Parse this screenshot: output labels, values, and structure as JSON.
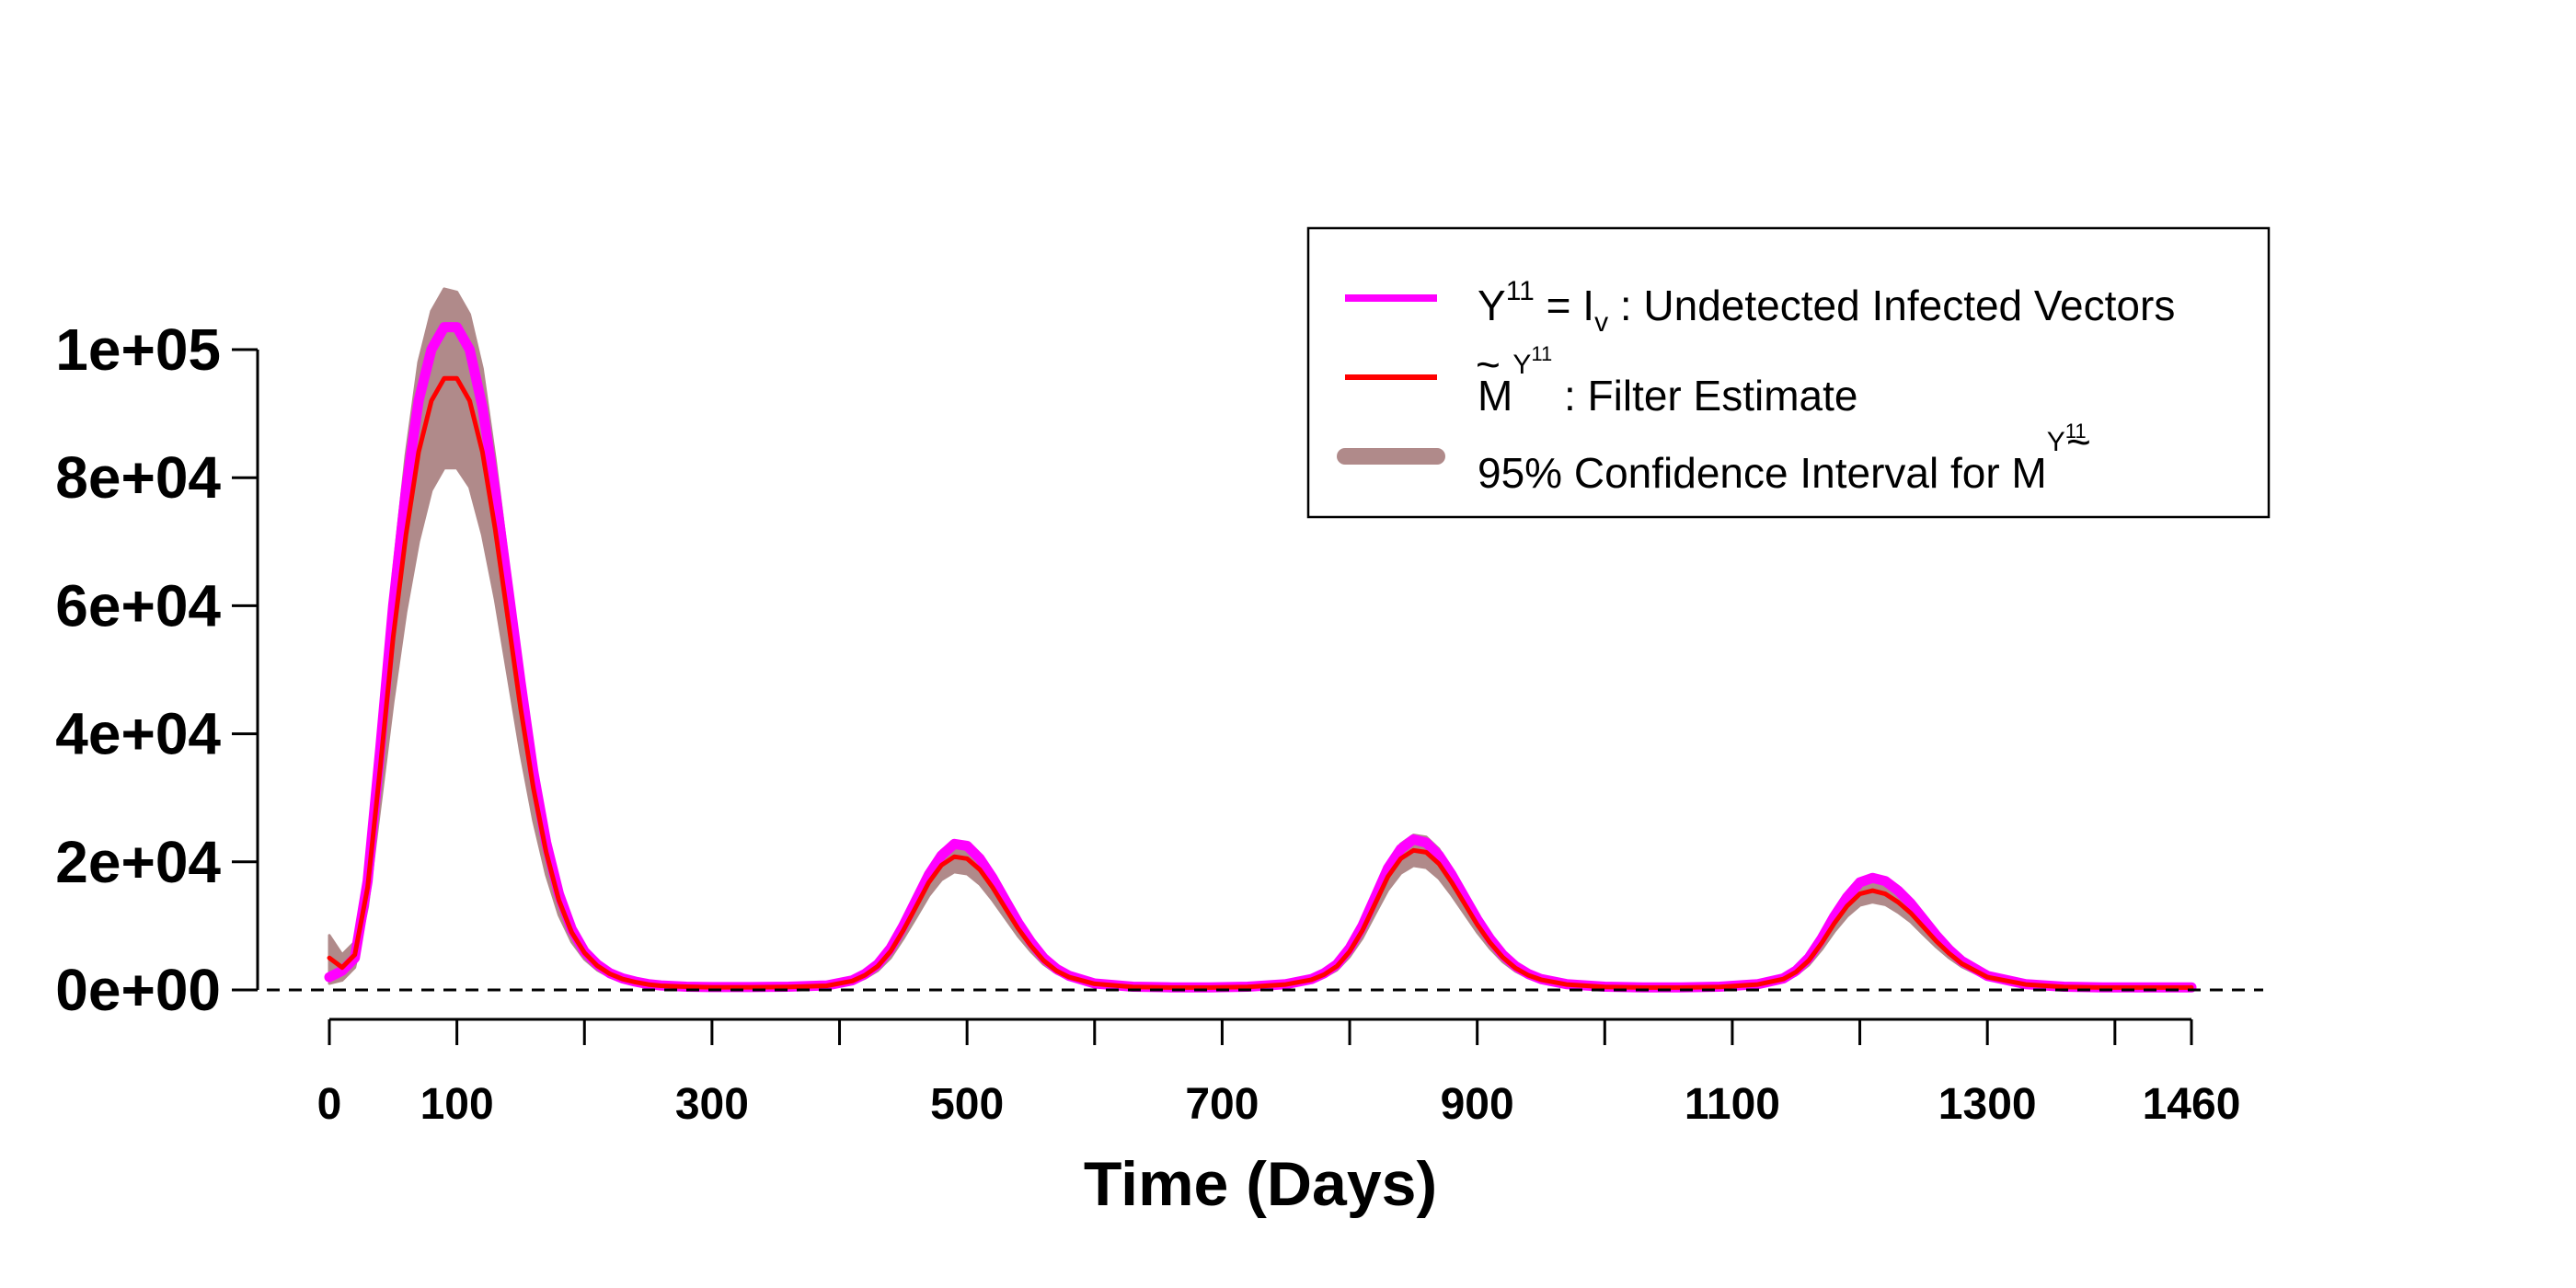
{
  "chart_data": {
    "type": "line",
    "title": "",
    "xlabel": "Time (Days)",
    "ylabel": "",
    "xlim": [
      0,
      1460
    ],
    "ylim": [
      0,
      100000
    ],
    "x_ticks": [
      0,
      100,
      300,
      500,
      700,
      900,
      1100,
      1300,
      1460
    ],
    "x_tick_labels": [
      "0",
      "100",
      "300",
      "500",
      "700",
      "900",
      "1100",
      "1300",
      "1460"
    ],
    "x_minor_ticks": [
      200,
      400,
      600,
      800,
      1000,
      1200,
      1400
    ],
    "y_ticks": [
      0,
      20000,
      40000,
      60000,
      80000,
      100000
    ],
    "y_tick_labels": [
      "0e+00",
      "2e+04",
      "4e+04",
      "6e+04",
      "8e+04",
      "1e+05"
    ],
    "reference_line": {
      "y": 0,
      "style": "dashed"
    },
    "x": [
      0,
      10,
      20,
      30,
      40,
      50,
      60,
      70,
      80,
      90,
      100,
      110,
      120,
      130,
      140,
      150,
      160,
      170,
      180,
      190,
      200,
      210,
      220,
      230,
      240,
      250,
      260,
      280,
      300,
      330,
      360,
      390,
      410,
      420,
      430,
      440,
      450,
      460,
      470,
      480,
      490,
      500,
      510,
      520,
      530,
      540,
      550,
      560,
      570,
      580,
      600,
      630,
      660,
      690,
      720,
      750,
      770,
      780,
      790,
      800,
      810,
      820,
      830,
      840,
      850,
      860,
      870,
      880,
      890,
      900,
      910,
      920,
      930,
      940,
      950,
      970,
      1000,
      1030,
      1060,
      1090,
      1120,
      1140,
      1150,
      1160,
      1170,
      1180,
      1190,
      1200,
      1210,
      1220,
      1230,
      1240,
      1250,
      1260,
      1270,
      1280,
      1300,
      1330,
      1360,
      1390,
      1420,
      1460
    ],
    "series": [
      {
        "name": "Y11 = Iv : Undetected Infected Vectors",
        "color": "#ff00ff",
        "values": [
          2000,
          3000,
          5000,
          17000,
          38000,
          60000,
          78000,
          92000,
          100000,
          103500,
          103500,
          100000,
          91000,
          78000,
          63000,
          48000,
          34000,
          23000,
          15000,
          9500,
          6000,
          4000,
          2600,
          1800,
          1300,
          900,
          700,
          500,
          450,
          450,
          500,
          700,
          1500,
          2500,
          4000,
          6500,
          10000,
          14000,
          18000,
          21000,
          22800,
          22500,
          20500,
          17500,
          14000,
          10500,
          7500,
          5000,
          3300,
          2200,
          1000,
          500,
          400,
          400,
          500,
          900,
          1700,
          2600,
          4000,
          6500,
          10000,
          14500,
          19000,
          22000,
          23500,
          23000,
          21000,
          18000,
          14500,
          11000,
          8000,
          5500,
          3700,
          2500,
          1700,
          900,
          500,
          400,
          400,
          500,
          900,
          1800,
          3000,
          5000,
          8000,
          11500,
          14500,
          16800,
          17500,
          17000,
          15500,
          13500,
          11000,
          8500,
          6300,
          4500,
          2200,
          900,
          500,
          400,
          400,
          400
        ]
      },
      {
        "name": "M~Y11 : Filter Estimate",
        "color": "#ff0000",
        "values": [
          5000,
          3500,
          5500,
          16000,
          35000,
          55000,
          71000,
          84000,
          92000,
          95500,
          95500,
          92000,
          84000,
          72000,
          58000,
          44000,
          31500,
          21500,
          14000,
          9000,
          5800,
          3800,
          2500,
          1700,
          1200,
          850,
          650,
          500,
          420,
          420,
          480,
          650,
          1400,
          2300,
          3700,
          6000,
          9300,
          13000,
          16800,
          19500,
          20800,
          20500,
          18800,
          16000,
          12800,
          9600,
          6900,
          4600,
          3000,
          2000,
          950,
          480,
          380,
          380,
          480,
          850,
          1600,
          2400,
          3700,
          6000,
          9300,
          13500,
          17700,
          20500,
          21800,
          21500,
          19700,
          16800,
          13500,
          10200,
          7400,
          5100,
          3400,
          2300,
          1600,
          850,
          480,
          380,
          380,
          480,
          850,
          1700,
          2800,
          4600,
          7300,
          10400,
          13100,
          15000,
          15500,
          15000,
          13700,
          12000,
          9800,
          7600,
          5700,
          4100,
          2000,
          850,
          480,
          380,
          380,
          380
        ]
      },
      {
        "name": "95% Confidence Interval for M~Y11",
        "color": "#b08a8a",
        "type": "band",
        "lower": [
          1000,
          1500,
          3500,
          13000,
          29000,
          45000,
          59000,
          70000,
          78000,
          81500,
          81500,
          78500,
          71000,
          61000,
          49000,
          37000,
          26500,
          18000,
          11700,
          7500,
          4800,
          3100,
          2000,
          1300,
          900,
          600,
          450,
          300,
          250,
          250,
          300,
          450,
          1000,
          1800,
          3000,
          5000,
          8000,
          11300,
          14700,
          17200,
          18400,
          18100,
          16500,
          14000,
          11200,
          8400,
          6000,
          4000,
          2600,
          1700,
          750,
          320,
          230,
          230,
          320,
          650,
          1300,
          2000,
          3100,
          5200,
          8100,
          11900,
          15600,
          18200,
          19400,
          19100,
          17400,
          14800,
          11900,
          9000,
          6500,
          4400,
          2900,
          1900,
          1300,
          650,
          320,
          230,
          230,
          320,
          650,
          1400,
          2300,
          3900,
          6300,
          9100,
          11500,
          13200,
          13700,
          13300,
          12100,
          10600,
          8600,
          6700,
          5000,
          3600,
          1700,
          650,
          320,
          230,
          230,
          230
        ],
        "upper": [
          8500,
          5500,
          7500,
          19500,
          41000,
          65000,
          83500,
          98000,
          106000,
          109500,
          109000,
          105500,
          97000,
          83000,
          67000,
          51000,
          36500,
          25000,
          16300,
          10500,
          6800,
          4500,
          3000,
          2100,
          1500,
          1100,
          850,
          700,
          600,
          600,
          660,
          850,
          1800,
          2800,
          4400,
          7000,
          10600,
          14700,
          18900,
          21800,
          23200,
          22900,
          21100,
          18000,
          14400,
          10800,
          7800,
          5200,
          3400,
          2300,
          1150,
          640,
          530,
          530,
          640,
          1050,
          1900,
          2800,
          4300,
          6800,
          10500,
          15100,
          19800,
          22800,
          24200,
          23900,
          22000,
          18800,
          15100,
          11400,
          8300,
          5800,
          3900,
          2700,
          1900,
          1050,
          640,
          530,
          530,
          640,
          1050,
          2000,
          3300,
          5300,
          8300,
          11700,
          14700,
          16800,
          17300,
          16700,
          15300,
          13400,
          11000,
          8500,
          6400,
          4600,
          2300,
          1050,
          640,
          530,
          530,
          530
        ]
      }
    ],
    "legend": {
      "position": "top-right",
      "entries": [
        {
          "main": "Y",
          "sup": "11",
          "mid": " = I",
          "sub": "v",
          "tail": " : Undetected Infected Vectors",
          "color": "#ff00ff"
        },
        {
          "main": "M",
          "accent": "~",
          "sup": "Y",
          "supsup": "11",
          "tail": " : Filter Estimate",
          "color": "#ff0000"
        },
        {
          "main": "95% Confidence Interval for M",
          "accent": "~",
          "sup": "Y",
          "supsup": "11",
          "color": "#b08a8a"
        }
      ]
    }
  }
}
